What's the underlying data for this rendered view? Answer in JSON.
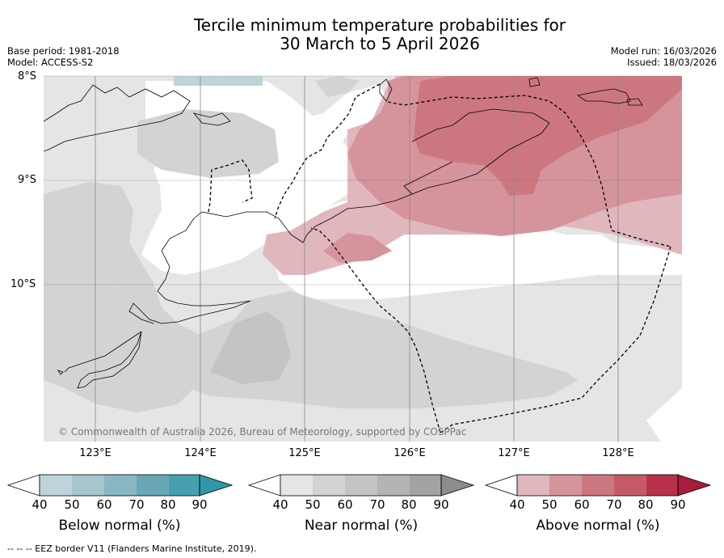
{
  "title": {
    "line1": "Tercile minimum temperature probabilities for",
    "line2": "30 March to 5 April 2026"
  },
  "meta": {
    "base_period": "Base period: 1981-2018",
    "model": "Model: ACCESS-S2",
    "model_run": "Model run: 16/03/2026",
    "issued": "Issued: 18/03/2026"
  },
  "map": {
    "lat_labels": [
      "8°S",
      "9°S",
      "10°S"
    ],
    "lon_labels": [
      "123°E",
      "124°E",
      "125°E",
      "126°E",
      "127°E",
      "128°E"
    ],
    "copyright": "© Commonwealth of Australia 2026, Bureau of Meteorology, supported by COSPPac"
  },
  "colorbars": [
    {
      "name": "below-normal",
      "label": "Below normal (%)",
      "ticks": [
        "40",
        "50",
        "60",
        "70",
        "80",
        "90"
      ],
      "colors": [
        "#bed3da",
        "#a5c6cc",
        "#89b8c2",
        "#68a8b6",
        "#46a0b0",
        "#2f97a8"
      ]
    },
    {
      "name": "near-normal",
      "label": "Near normal (%)",
      "ticks": [
        "40",
        "50",
        "60",
        "70",
        "80",
        "90"
      ],
      "colors": [
        "#e5e5e5",
        "#d3d3d3",
        "#c4c4c4",
        "#b4b4b4",
        "#a3a3a3",
        "#8c8c8c"
      ]
    },
    {
      "name": "above-normal",
      "label": "Above normal (%)",
      "ticks": [
        "40",
        "50",
        "60",
        "70",
        "80",
        "90"
      ],
      "colors": [
        "#e0b7bd",
        "#d5949c",
        "#cc7780",
        "#c55a66",
        "#b8304a",
        "#a81c3c"
      ]
    }
  ],
  "footer": "--  --  -- EEZ border V11 (Flanders Marine Institute, 2019)."
}
